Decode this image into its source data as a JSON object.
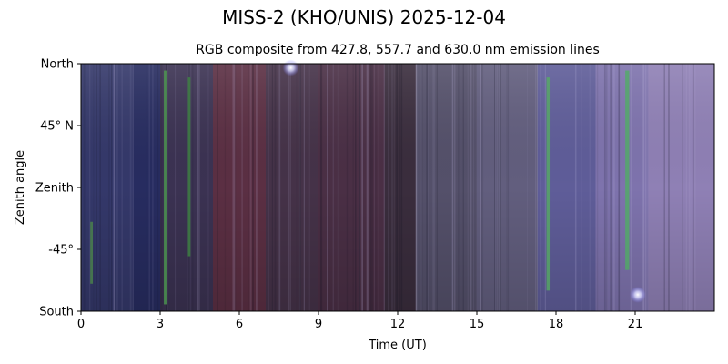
{
  "figure": {
    "title": "MISS-2 (KHO/UNIS) 2025-12-04"
  },
  "chart_data": {
    "type": "heatmap",
    "title": "RGB composite from 427.8, 557.7 and 630.0 nm emission lines",
    "xlabel": "Time (UT)",
    "ylabel": "Zenith angle",
    "xlim": [
      0,
      24
    ],
    "ylim": [
      -90,
      90
    ],
    "x_ticks": [
      {
        "value": 0,
        "label": "0"
      },
      {
        "value": 3,
        "label": "3"
      },
      {
        "value": 6,
        "label": "6"
      },
      {
        "value": 9,
        "label": "9"
      },
      {
        "value": 12,
        "label": "12"
      },
      {
        "value": 15,
        "label": "15"
      },
      {
        "value": 18,
        "label": "18"
      },
      {
        "value": 21,
        "label": "21"
      }
    ],
    "y_ticks": [
      {
        "value": 90,
        "label": "North"
      },
      {
        "value": 45,
        "label": "45° N"
      },
      {
        "value": 0,
        "label": "Zenith"
      },
      {
        "value": -45,
        "label": "-45°"
      },
      {
        "value": -90,
        "label": "South"
      }
    ],
    "background_bands": [
      {
        "x0": 0,
        "x1": 2.0,
        "color": "#34386a"
      },
      {
        "x0": 2.0,
        "x1": 3.0,
        "color": "#272c60"
      },
      {
        "x0": 3.0,
        "x1": 5.0,
        "color": "#3b3252"
      },
      {
        "x0": 5.0,
        "x1": 7.0,
        "color": "#5b2f43"
      },
      {
        "x0": 7.0,
        "x1": 9.0,
        "color": "#453248"
      },
      {
        "x0": 9.0,
        "x1": 11.5,
        "color": "#4a2f45"
      },
      {
        "x0": 11.5,
        "x1": 12.7,
        "color": "#3a2d3d"
      },
      {
        "x0": 12.7,
        "x1": 15.0,
        "color": "#54506a"
      },
      {
        "x0": 15.0,
        "x1": 17.3,
        "color": "#625e7e"
      },
      {
        "x0": 17.3,
        "x1": 19.5,
        "color": "#5f5d99"
      },
      {
        "x0": 19.5,
        "x1": 21.5,
        "color": "#7e73ad"
      },
      {
        "x0": 21.5,
        "x1": 24.0,
        "color": "#8f80b5"
      }
    ],
    "features": [
      {
        "x": 3.2,
        "width": 0.12,
        "y0": -85,
        "y1": 85,
        "color": "#4fa050"
      },
      {
        "x": 4.1,
        "width": 0.1,
        "y0": -50,
        "y1": 80,
        "color": "#3f8a42"
      },
      {
        "x": 17.7,
        "width": 0.12,
        "y0": -75,
        "y1": 80,
        "color": "#55b060"
      },
      {
        "x": 20.7,
        "width": 0.15,
        "y0": -60,
        "y1": 85,
        "color": "#4eb060"
      },
      {
        "x": 0.4,
        "width": 0.1,
        "y0": -70,
        "y1": -25,
        "color": "#4e8a4a"
      }
    ],
    "bright_spots": [
      {
        "x": 7.95,
        "y": 87,
        "color": "#ffffff"
      },
      {
        "x": 21.1,
        "y": -78,
        "color": "#ffffff"
      }
    ]
  }
}
